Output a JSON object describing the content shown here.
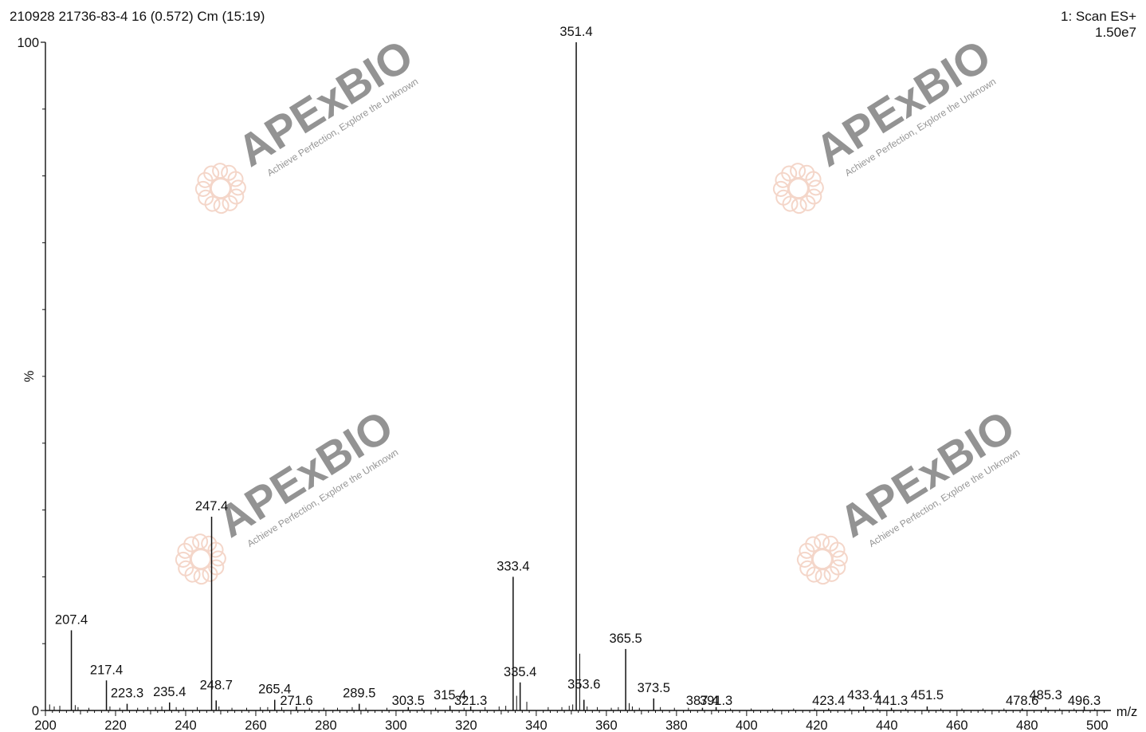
{
  "header": {
    "sample_info": "210928 21736-83-4 16 (0.572) Cm (15:19)",
    "scan_mode": "1: Scan ES+",
    "intensity": "1.50e7"
  },
  "watermark": {
    "brand": "APExBIO",
    "tagline": "Achieve Perfection, Explore the Unknown",
    "color": "#e8a58a"
  },
  "chart_data": {
    "type": "bar",
    "title": "210928 21736-83-4 16 (0.572) Cm (15:19)",
    "xlabel": "m/z",
    "ylabel": "%",
    "xlim": [
      200,
      503
    ],
    "ylim": [
      0,
      100
    ],
    "x_ticks": [
      200,
      220,
      240,
      260,
      280,
      300,
      320,
      340,
      360,
      380,
      400,
      420,
      440,
      460,
      480,
      500
    ],
    "y_ticks": [
      0,
      100
    ],
    "grid": false,
    "labeled_peaks": [
      {
        "mz": 207.4,
        "intensity": 12.0,
        "label": "207.4"
      },
      {
        "mz": 217.4,
        "intensity": 4.5,
        "label": "217.4"
      },
      {
        "mz": 223.3,
        "intensity": 1.0,
        "label": "223.3"
      },
      {
        "mz": 235.4,
        "intensity": 1.2,
        "label": "235.4"
      },
      {
        "mz": 247.4,
        "intensity": 29.0,
        "label": "247.4"
      },
      {
        "mz": 248.7,
        "intensity": 1.5,
        "label": "248.7"
      },
      {
        "mz": 265.4,
        "intensity": 1.6,
        "label": "265.4"
      },
      {
        "mz": 271.6,
        "intensity": 0.6,
        "label": "271.6"
      },
      {
        "mz": 289.5,
        "intensity": 1.0,
        "label": "289.5"
      },
      {
        "mz": 303.5,
        "intensity": 0.5,
        "label": "303.5"
      },
      {
        "mz": 315.4,
        "intensity": 0.7,
        "label": "315.4"
      },
      {
        "mz": 321.3,
        "intensity": 0.6,
        "label": "321.3"
      },
      {
        "mz": 333.4,
        "intensity": 20.0,
        "label": "333.4"
      },
      {
        "mz": 335.4,
        "intensity": 4.2,
        "label": "335.4"
      },
      {
        "mz": 351.4,
        "intensity": 100.0,
        "label": "351.4"
      },
      {
        "mz": 353.6,
        "intensity": 1.6,
        "label": "353.6"
      },
      {
        "mz": 365.5,
        "intensity": 9.2,
        "label": "365.5"
      },
      {
        "mz": 373.5,
        "intensity": 1.8,
        "label": "373.5"
      },
      {
        "mz": 387.4,
        "intensity": 0.4,
        "label": "387.4"
      },
      {
        "mz": 391.3,
        "intensity": 0.5,
        "label": "391.3"
      },
      {
        "mz": 423.4,
        "intensity": 0.3,
        "label": "423.4"
      },
      {
        "mz": 433.4,
        "intensity": 0.6,
        "label": "433.4"
      },
      {
        "mz": 441.3,
        "intensity": 0.4,
        "label": "441.3"
      },
      {
        "mz": 451.5,
        "intensity": 0.6,
        "label": "451.5"
      },
      {
        "mz": 478.6,
        "intensity": 0.3,
        "label": "478.6"
      },
      {
        "mz": 485.3,
        "intensity": 0.5,
        "label": "485.3"
      },
      {
        "mz": 496.3,
        "intensity": 0.6,
        "label": "496.3"
      }
    ],
    "minor_peaks": [
      {
        "mz": 201.2,
        "intensity": 0.9
      },
      {
        "mz": 202.5,
        "intensity": 0.6
      },
      {
        "mz": 204.1,
        "intensity": 0.7
      },
      {
        "mz": 208.5,
        "intensity": 0.8
      },
      {
        "mz": 209.3,
        "intensity": 0.5
      },
      {
        "mz": 212.4,
        "intensity": 0.4
      },
      {
        "mz": 218.4,
        "intensity": 0.6
      },
      {
        "mz": 221.2,
        "intensity": 0.4
      },
      {
        "mz": 226.3,
        "intensity": 0.4
      },
      {
        "mz": 229.2,
        "intensity": 0.5
      },
      {
        "mz": 231.4,
        "intensity": 0.5
      },
      {
        "mz": 233.2,
        "intensity": 0.6
      },
      {
        "mz": 237.3,
        "intensity": 0.5
      },
      {
        "mz": 239.4,
        "intensity": 0.4
      },
      {
        "mz": 243.3,
        "intensity": 0.5
      },
      {
        "mz": 249.5,
        "intensity": 0.6
      },
      {
        "mz": 253.2,
        "intensity": 0.4
      },
      {
        "mz": 257.4,
        "intensity": 0.4
      },
      {
        "mz": 261.3,
        "intensity": 0.5
      },
      {
        "mz": 263.4,
        "intensity": 0.5
      },
      {
        "mz": 267.4,
        "intensity": 0.5
      },
      {
        "mz": 275.3,
        "intensity": 0.4
      },
      {
        "mz": 279.4,
        "intensity": 0.4
      },
      {
        "mz": 283.3,
        "intensity": 0.4
      },
      {
        "mz": 287.5,
        "intensity": 0.5
      },
      {
        "mz": 291.4,
        "intensity": 0.4
      },
      {
        "mz": 297.4,
        "intensity": 0.4
      },
      {
        "mz": 307.4,
        "intensity": 0.4
      },
      {
        "mz": 311.3,
        "intensity": 0.4
      },
      {
        "mz": 319.4,
        "intensity": 0.4
      },
      {
        "mz": 325.4,
        "intensity": 0.5
      },
      {
        "mz": 329.4,
        "intensity": 0.6
      },
      {
        "mz": 331.3,
        "intensity": 0.7
      },
      {
        "mz": 334.4,
        "intensity": 2.2
      },
      {
        "mz": 337.3,
        "intensity": 1.3
      },
      {
        "mz": 343.4,
        "intensity": 0.5
      },
      {
        "mz": 347.3,
        "intensity": 0.5
      },
      {
        "mz": 349.4,
        "intensity": 0.7
      },
      {
        "mz": 350.4,
        "intensity": 0.9
      },
      {
        "mz": 352.4,
        "intensity": 8.5
      },
      {
        "mz": 354.5,
        "intensity": 0.6
      },
      {
        "mz": 357.4,
        "intensity": 0.5
      },
      {
        "mz": 361.4,
        "intensity": 0.4
      },
      {
        "mz": 363.4,
        "intensity": 0.5
      },
      {
        "mz": 366.5,
        "intensity": 1.1
      },
      {
        "mz": 367.4,
        "intensity": 0.6
      },
      {
        "mz": 369.4,
        "intensity": 0.4
      },
      {
        "mz": 375.4,
        "intensity": 0.5
      },
      {
        "mz": 379.4,
        "intensity": 0.4
      },
      {
        "mz": 383.4,
        "intensity": 0.4
      },
      {
        "mz": 395.4,
        "intensity": 0.3
      },
      {
        "mz": 401.3,
        "intensity": 0.3
      },
      {
        "mz": 407.4,
        "intensity": 0.3
      },
      {
        "mz": 413.4,
        "intensity": 0.3
      },
      {
        "mz": 419.4,
        "intensity": 0.3
      },
      {
        "mz": 429.4,
        "intensity": 0.3
      },
      {
        "mz": 437.3,
        "intensity": 0.3
      },
      {
        "mz": 445.4,
        "intensity": 0.3
      },
      {
        "mz": 455.4,
        "intensity": 0.3
      },
      {
        "mz": 461.4,
        "intensity": 0.3
      },
      {
        "mz": 467.4,
        "intensity": 0.3
      },
      {
        "mz": 473.4,
        "intensity": 0.3
      },
      {
        "mz": 489.3,
        "intensity": 0.3
      },
      {
        "mz": 493.4,
        "intensity": 0.3
      },
      {
        "mz": 499.3,
        "intensity": 0.3
      }
    ]
  }
}
